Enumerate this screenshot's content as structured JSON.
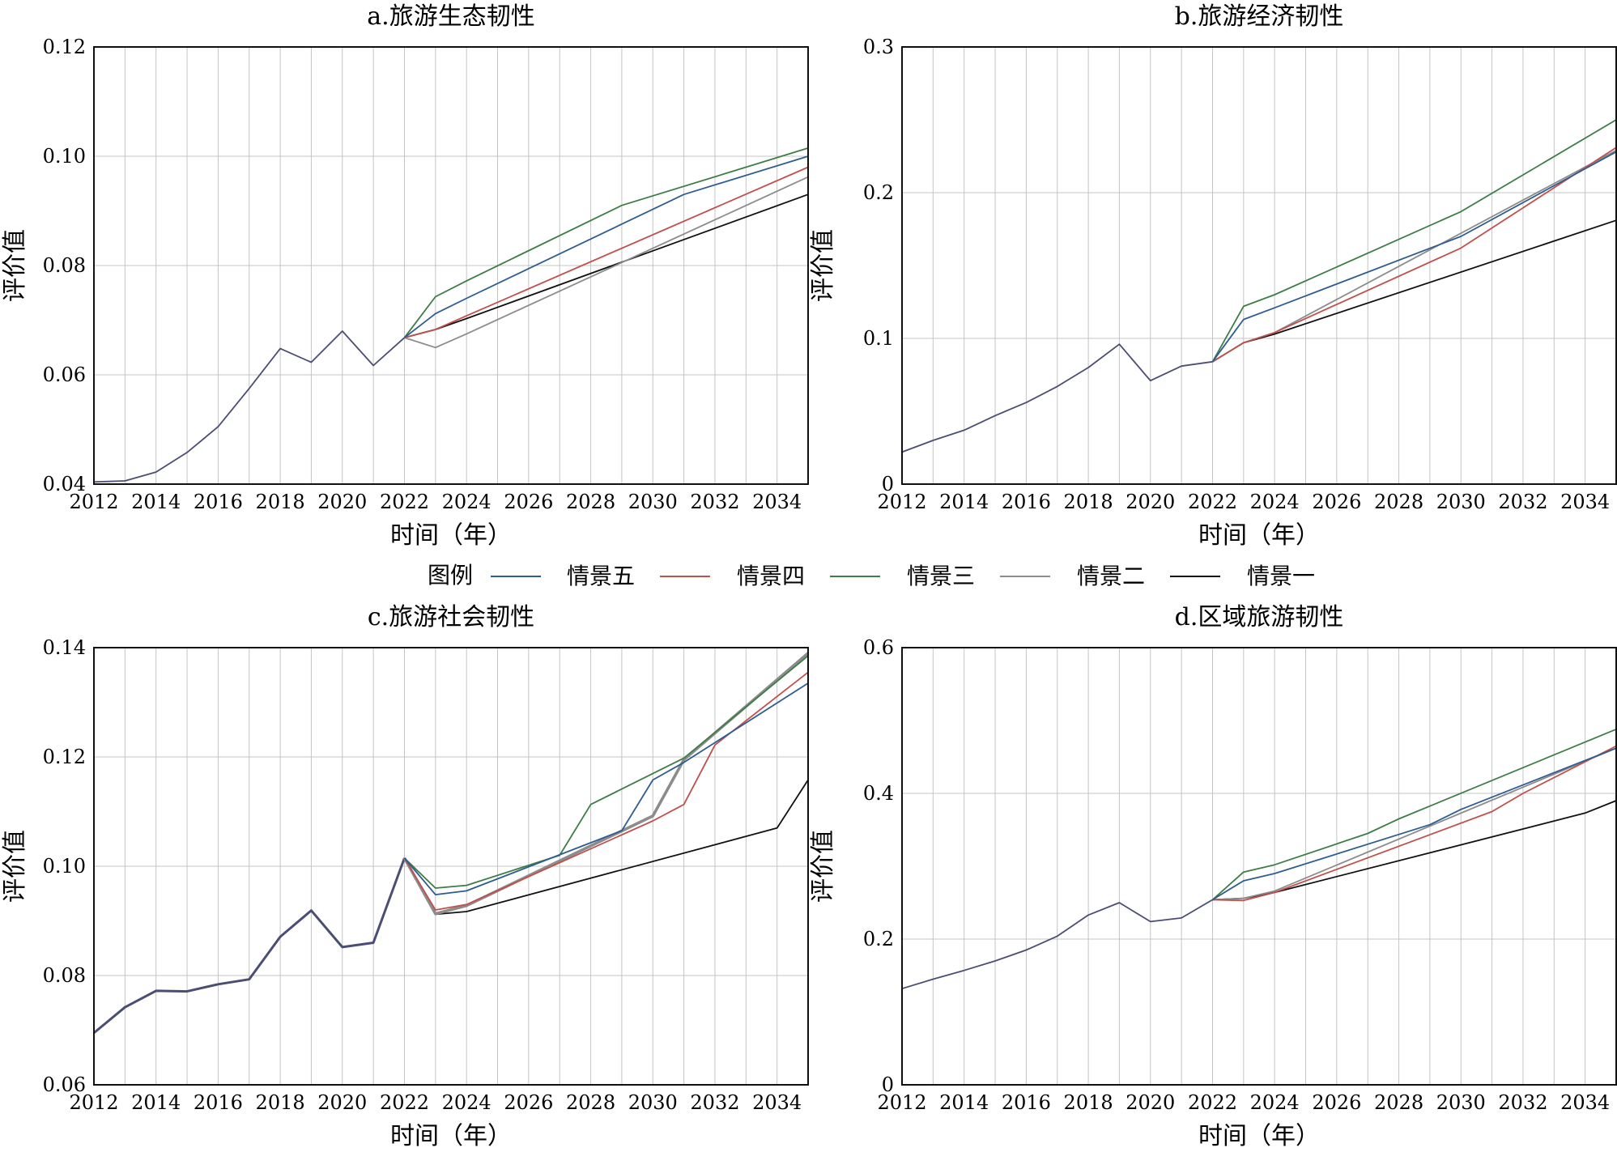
{
  "legend": {
    "title": "图例",
    "items": [
      {
        "name": "情景五",
        "color": "#2e5d91"
      },
      {
        "name": "情景四",
        "color": "#c0504d"
      },
      {
        "name": "情景三",
        "color": "#3e7d46"
      },
      {
        "name": "情景二",
        "color": "#8c8c8c"
      },
      {
        "name": "情景一",
        "color": "#111111"
      }
    ]
  },
  "chart_data": [
    {
      "type": "line",
      "title": "a.旅游生态韧性",
      "xlabel": "时间（年）",
      "ylabel": "评价值",
      "xlim": [
        2012,
        2035
      ],
      "ylim": [
        0.04,
        0.12
      ],
      "xticks": [
        "2012",
        "2014",
        "2016",
        "2018",
        "2020",
        "2022",
        "2024",
        "2026",
        "2028",
        "2030",
        "2032",
        "2034"
      ],
      "yticks": [
        "0.04",
        "0.06",
        "0.08",
        "0.10",
        "0.12"
      ],
      "history": {
        "x": [
          2012,
          2013,
          2014,
          2015,
          2016,
          2017,
          2018,
          2019,
          2020,
          2021,
          2022
        ],
        "values": [
          0.0404,
          0.0406,
          0.0422,
          0.0458,
          0.0505,
          0.0575,
          0.0648,
          0.0623,
          0.068,
          0.0617,
          0.0668
        ]
      },
      "series": [
        {
          "name": "情景一",
          "color": "#111111",
          "x": [
            2022,
            2023,
            2024,
            2035
          ],
          "values": [
            0.0668,
            0.0683,
            0.0703,
            0.093
          ]
        },
        {
          "name": "情景二",
          "color": "#8c8c8c",
          "x": [
            2022,
            2023,
            2024,
            2035
          ],
          "values": [
            0.0668,
            0.065,
            0.0675,
            0.0962
          ]
        },
        {
          "name": "情景三",
          "color": "#3e7d46",
          "x": [
            2022,
            2023,
            2024,
            2029,
            2035
          ],
          "values": [
            0.0668,
            0.0743,
            0.0772,
            0.091,
            0.1015
          ]
        },
        {
          "name": "情景四",
          "color": "#c0504d",
          "x": [
            2022,
            2023,
            2024,
            2035
          ],
          "values": [
            0.0668,
            0.0683,
            0.0708,
            0.098
          ]
        },
        {
          "name": "情景五",
          "color": "#2e5d91",
          "x": [
            2022,
            2023,
            2024,
            2031,
            2035
          ],
          "values": [
            0.0668,
            0.0712,
            0.074,
            0.093,
            0.1
          ]
        }
      ]
    },
    {
      "type": "line",
      "title": "b.旅游经济韧性",
      "xlabel": "时间（年）",
      "ylabel": "评价值",
      "xlim": [
        2012,
        2035
      ],
      "ylim": [
        0,
        0.3
      ],
      "xticks": [
        "2012",
        "2014",
        "2016",
        "2018",
        "2020",
        "2022",
        "2024",
        "2026",
        "2028",
        "2030",
        "2032",
        "2034"
      ],
      "yticks": [
        "0",
        "0.1",
        "0.2",
        "0.3"
      ],
      "history": {
        "x": [
          2012,
          2013,
          2014,
          2015,
          2016,
          2017,
          2018,
          2019,
          2020,
          2021,
          2022
        ],
        "values": [
          0.022,
          0.03,
          0.037,
          0.047,
          0.056,
          0.067,
          0.08,
          0.096,
          0.071,
          0.081,
          0.084
        ]
      },
      "series": [
        {
          "name": "情景一",
          "color": "#111111",
          "x": [
            2022,
            2023,
            2024,
            2035
          ],
          "values": [
            0.084,
            0.097,
            0.103,
            0.181
          ]
        },
        {
          "name": "情景二",
          "color": "#8c8c8c",
          "x": [
            2022,
            2023,
            2024,
            2035
          ],
          "values": [
            0.084,
            0.097,
            0.104,
            0.229
          ]
        },
        {
          "name": "情景三",
          "color": "#3e7d46",
          "x": [
            2022,
            2023,
            2024,
            2030,
            2035
          ],
          "values": [
            0.084,
            0.122,
            0.13,
            0.187,
            0.25
          ]
        },
        {
          "name": "情景四",
          "color": "#c0504d",
          "x": [
            2022,
            2023,
            2024,
            2030,
            2035
          ],
          "values": [
            0.084,
            0.097,
            0.104,
            0.162,
            0.231
          ]
        },
        {
          "name": "情景五",
          "color": "#2e5d91",
          "x": [
            2022,
            2023,
            2024,
            2030,
            2035
          ],
          "values": [
            0.084,
            0.113,
            0.121,
            0.17,
            0.228
          ]
        }
      ]
    },
    {
      "type": "line",
      "title": "c.旅游社会韧性",
      "xlabel": "时间（年）",
      "ylabel": "评价值",
      "xlim": [
        2012,
        2035
      ],
      "ylim": [
        0.06,
        0.14
      ],
      "xticks": [
        "2012",
        "2014",
        "2016",
        "2018",
        "2020",
        "2022",
        "2024",
        "2026",
        "2028",
        "2030",
        "2032",
        "2034"
      ],
      "yticks": [
        "0.06",
        "0.08",
        "0.10",
        "0.12",
        "0.14"
      ],
      "history": {
        "x": [
          2012,
          2013,
          2014,
          2015,
          2016,
          2017,
          2018,
          2019,
          2020,
          2021,
          2022
        ],
        "values": [
          0.0695,
          0.0742,
          0.0772,
          0.0771,
          0.0784,
          0.0793,
          0.0871,
          0.0919,
          0.0852,
          0.086,
          0.1015
        ]
      },
      "series": [
        {
          "name": "情景一",
          "color": "#111111",
          "x": [
            2022,
            2023,
            2024,
            2034,
            2035
          ],
          "values": [
            0.1015,
            0.0912,
            0.0917,
            0.107,
            0.1158
          ]
        },
        {
          "name": "情景二",
          "color": "#8c8c8c",
          "x": [
            2022,
            2023,
            2024,
            2030,
            2031,
            2035
          ],
          "values": [
            0.1015,
            0.0913,
            0.0928,
            0.1092,
            0.1195,
            0.139
          ]
        },
        {
          "name": "情景三",
          "color": "#3e7d46",
          "x": [
            2022,
            2023,
            2024,
            2027,
            2028,
            2031,
            2035
          ],
          "values": [
            0.1015,
            0.096,
            0.0965,
            0.102,
            0.1113,
            0.1198,
            0.1385
          ]
        },
        {
          "name": "情景四",
          "color": "#c0504d",
          "x": [
            2022,
            2023,
            2024,
            2030,
            2031,
            2032,
            2035
          ],
          "values": [
            0.1015,
            0.092,
            0.093,
            0.1083,
            0.1113,
            0.1222,
            0.1355
          ]
        },
        {
          "name": "情景五",
          "color": "#2e5d91",
          "x": [
            2022,
            2023,
            2024,
            2029,
            2030,
            2031,
            2035
          ],
          "values": [
            0.1015,
            0.0948,
            0.0955,
            0.1065,
            0.1158,
            0.119,
            0.1335
          ]
        }
      ]
    },
    {
      "type": "line",
      "title": "d.区域旅游韧性",
      "xlabel": "时间（年）",
      "ylabel": "评价值",
      "xlim": [
        2012,
        2035
      ],
      "ylim": [
        0,
        0.6
      ],
      "xticks": [
        "2012",
        "2014",
        "2016",
        "2018",
        "2020",
        "2022",
        "2024",
        "2026",
        "2028",
        "2030",
        "2032",
        "2034"
      ],
      "yticks": [
        "0",
        "0.2",
        "0.4",
        "0.6"
      ],
      "history": {
        "x": [
          2012,
          2013,
          2014,
          2015,
          2016,
          2017,
          2018,
          2019,
          2020,
          2021,
          2022
        ],
        "values": [
          0.132,
          0.145,
          0.157,
          0.17,
          0.185,
          0.204,
          0.233,
          0.25,
          0.224,
          0.229,
          0.254
        ]
      },
      "series": [
        {
          "name": "情景一",
          "color": "#111111",
          "x": [
            2022,
            2023,
            2024,
            2034,
            2035
          ],
          "values": [
            0.254,
            0.256,
            0.264,
            0.373,
            0.39
          ]
        },
        {
          "name": "情景二",
          "color": "#8c8c8c",
          "x": [
            2022,
            2023,
            2024,
            2035
          ],
          "values": [
            0.254,
            0.256,
            0.266,
            0.462
          ]
        },
        {
          "name": "情景三",
          "color": "#3e7d46",
          "x": [
            2022,
            2023,
            2024,
            2027,
            2028,
            2035
          ],
          "values": [
            0.254,
            0.292,
            0.302,
            0.345,
            0.365,
            0.488
          ]
        },
        {
          "name": "情景四",
          "color": "#c0504d",
          "x": [
            2022,
            2023,
            2024,
            2031,
            2032,
            2035
          ],
          "values": [
            0.254,
            0.253,
            0.264,
            0.375,
            0.4,
            0.465
          ]
        },
        {
          "name": "情景五",
          "color": "#2e5d91",
          "x": [
            2022,
            2023,
            2024,
            2029,
            2030,
            2035
          ],
          "values": [
            0.254,
            0.28,
            0.29,
            0.357,
            0.378,
            0.462
          ]
        }
      ]
    }
  ]
}
